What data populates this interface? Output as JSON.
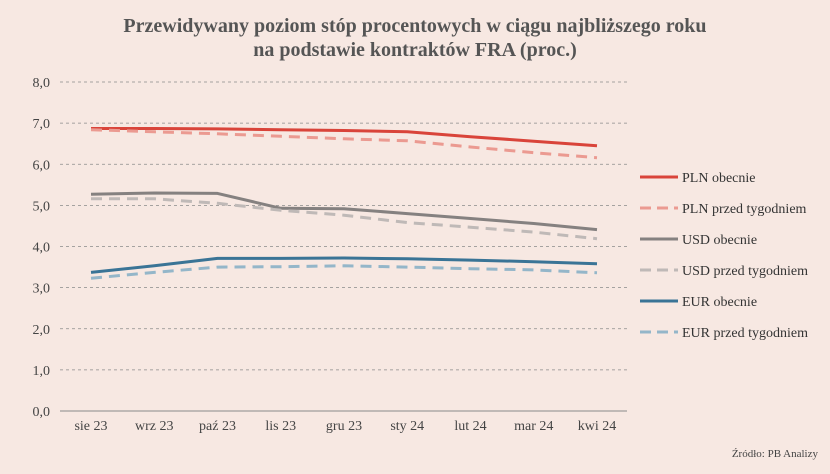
{
  "chart_data": {
    "type": "line",
    "title_line1": "Przewidywany poziom stóp procentowych w ciągu najbliższego roku",
    "title_line2": "na podstawie kontraktów FRA (proc.)",
    "categories": [
      "sie 23",
      "wrz 23",
      "paź 23",
      "lis 23",
      "gru 23",
      "sty 24",
      "lut 24",
      "mar 24",
      "kwi 24"
    ],
    "ylim": [
      0,
      8
    ],
    "yticks": [
      "0,0",
      "1,0",
      "2,0",
      "3,0",
      "4,0",
      "5,0",
      "6,0",
      "7,0",
      "8,0"
    ],
    "grid": true,
    "legend_position": "right",
    "series": [
      {
        "name": "PLN obecnie",
        "color": "#d9443a",
        "style": "solid",
        "values": [
          6.87,
          6.87,
          6.86,
          6.84,
          6.82,
          6.79,
          6.67,
          6.56,
          6.45
        ]
      },
      {
        "name": "PLN przed tygodniem",
        "color": "#eb9a91",
        "style": "dashed",
        "values": [
          6.84,
          6.79,
          6.74,
          6.68,
          6.62,
          6.57,
          6.42,
          6.28,
          6.16
        ]
      },
      {
        "name": "USD obecnie",
        "color": "#858180",
        "style": "solid",
        "values": [
          5.27,
          5.3,
          5.29,
          4.93,
          4.92,
          4.8,
          4.68,
          4.56,
          4.41
        ]
      },
      {
        "name": "USD przed tygodniem",
        "color": "#bfb9b7",
        "style": "dashed",
        "values": [
          5.16,
          5.16,
          5.05,
          4.88,
          4.76,
          4.58,
          4.47,
          4.35,
          4.19
        ]
      },
      {
        "name": "EUR obecnie",
        "color": "#3a7496",
        "style": "solid",
        "values": [
          3.37,
          3.53,
          3.71,
          3.71,
          3.72,
          3.7,
          3.67,
          3.63,
          3.58
        ]
      },
      {
        "name": "EUR przed tygodniem",
        "color": "#94b6c9",
        "style": "dashed",
        "values": [
          3.23,
          3.37,
          3.5,
          3.51,
          3.53,
          3.5,
          3.46,
          3.43,
          3.36
        ]
      }
    ]
  },
  "source": "Źródło: PB Analizy"
}
